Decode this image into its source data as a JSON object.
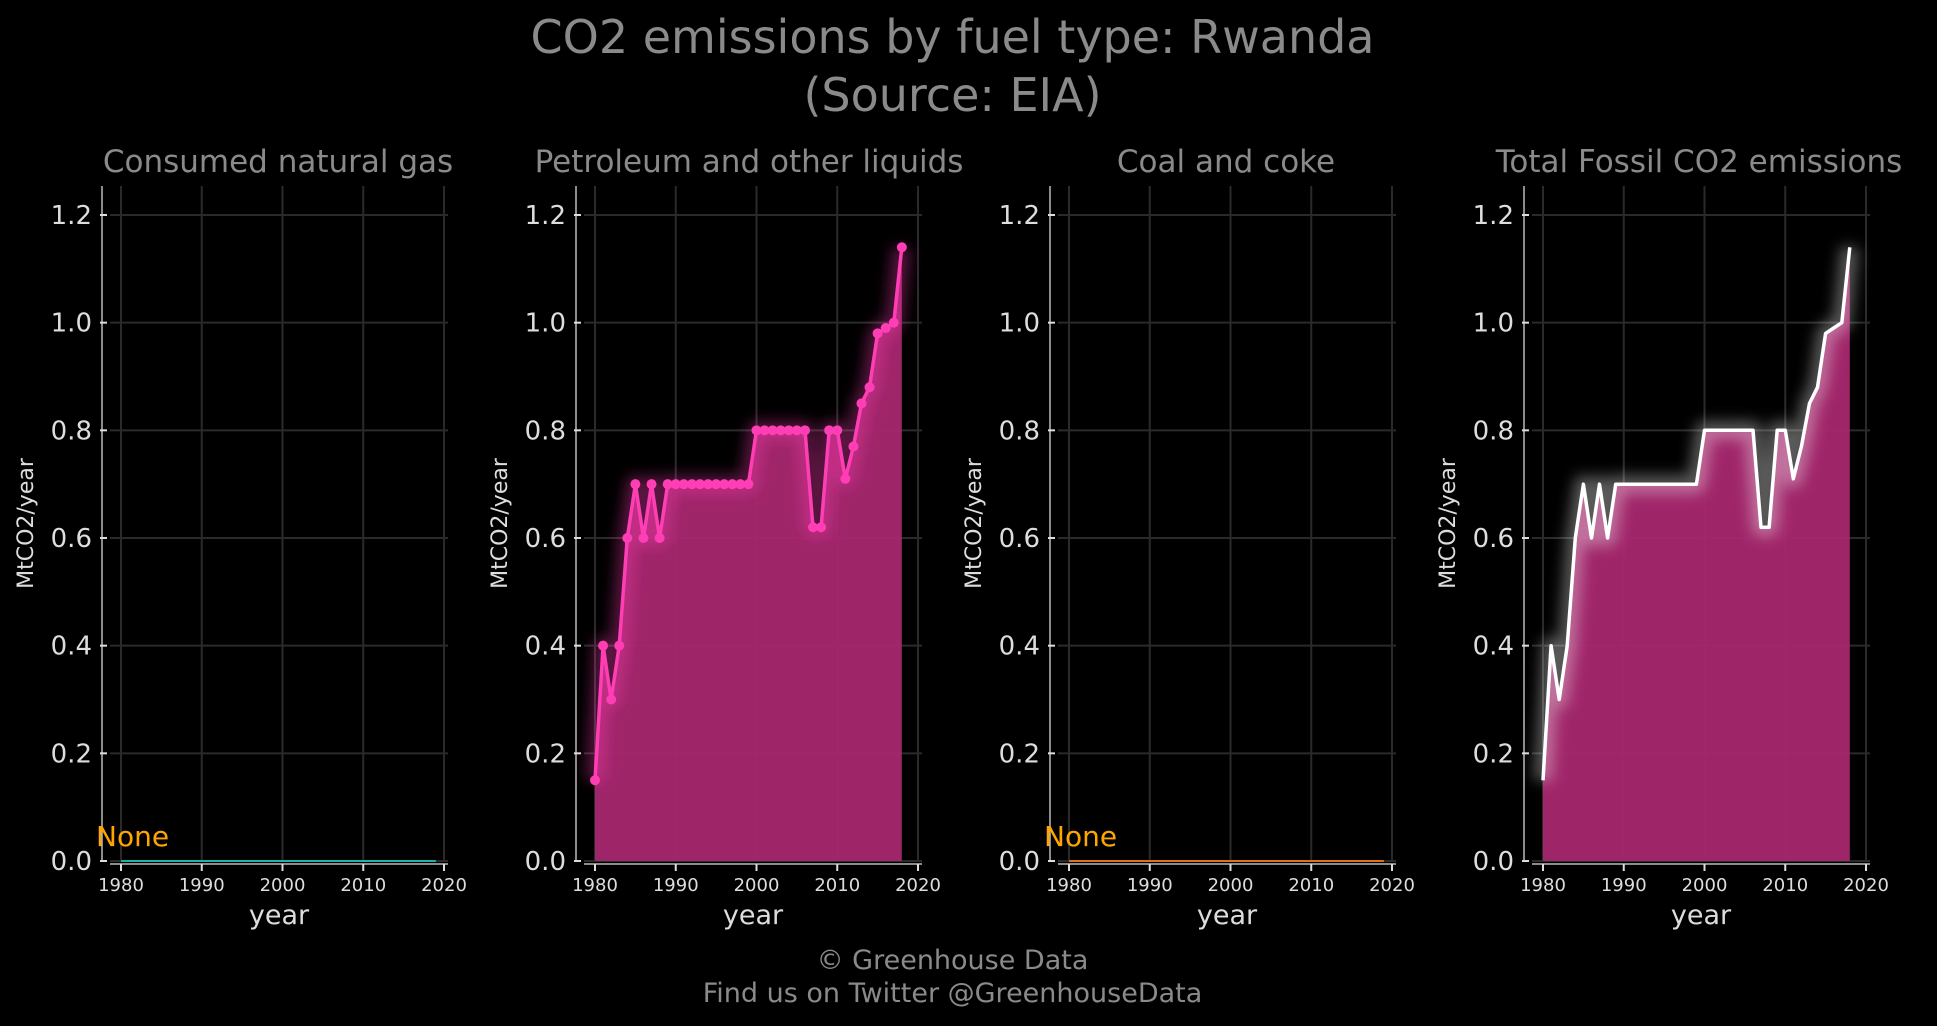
{
  "title_line1": "CO2 emissions by fuel type: Rwanda",
  "title_line2": "(Source: EIA)",
  "footer_line1": "© Greenhouse Data",
  "footer_line2": "Find us on Twitter @GreenhouseData",
  "chart_data": [
    {
      "type": "line",
      "title": "Consumed natural gas",
      "xlabel": "year",
      "ylabel": "MtCO2/year",
      "xlim": [
        1980,
        2020
      ],
      "ylim": [
        0,
        1.2
      ],
      "xticks": [
        1980,
        1990,
        2000,
        2010,
        2020
      ],
      "yticks": [
        "0.0",
        "0.2",
        "0.4",
        "0.6",
        "0.8",
        "1.0",
        "1.2"
      ],
      "grid": true,
      "color": "#20b2aa",
      "annotation": "None",
      "annotation_color": "#ffa500",
      "series": [
        {
          "x": [
            1980,
            2019
          ],
          "values": [
            0,
            0
          ]
        }
      ]
    },
    {
      "type": "area",
      "title": "Petroleum and other liquids",
      "xlabel": "year",
      "ylabel": "MtCO2/year",
      "xlim": [
        1980,
        2020
      ],
      "ylim": [
        0,
        1.2
      ],
      "xticks": [
        1980,
        1990,
        2000,
        2010,
        2020
      ],
      "yticks": [
        "0.0",
        "0.2",
        "0.4",
        "0.6",
        "0.8",
        "1.0",
        "1.2"
      ],
      "grid": true,
      "color": "#ff3eb5",
      "fill_color": "#a8276f",
      "markers": true,
      "series": [
        {
          "x": [
            1980,
            1981,
            1982,
            1983,
            1984,
            1985,
            1986,
            1987,
            1988,
            1989,
            1990,
            1991,
            1992,
            1993,
            1994,
            1995,
            1996,
            1997,
            1998,
            1999,
            2000,
            2001,
            2002,
            2003,
            2004,
            2005,
            2006,
            2007,
            2008,
            2009,
            2010,
            2011,
            2012,
            2013,
            2014,
            2015,
            2016,
            2017,
            2018
          ],
          "values": [
            0.15,
            0.4,
            0.3,
            0.4,
            0.6,
            0.7,
            0.6,
            0.7,
            0.6,
            0.7,
            0.7,
            0.7,
            0.7,
            0.7,
            0.7,
            0.7,
            0.7,
            0.7,
            0.7,
            0.7,
            0.8,
            0.8,
            0.8,
            0.8,
            0.8,
            0.8,
            0.8,
            0.62,
            0.62,
            0.8,
            0.8,
            0.71,
            0.77,
            0.85,
            0.88,
            0.98,
            0.99,
            1.0,
            1.14
          ]
        }
      ]
    },
    {
      "type": "line",
      "title": "Coal and coke",
      "xlabel": "year",
      "ylabel": "MtCO2/year",
      "xlim": [
        1980,
        2020
      ],
      "ylim": [
        0,
        1.2
      ],
      "xticks": [
        1980,
        1990,
        2000,
        2010,
        2020
      ],
      "yticks": [
        "0.0",
        "0.2",
        "0.4",
        "0.6",
        "0.8",
        "1.0",
        "1.2"
      ],
      "grid": true,
      "color": "#e0701a",
      "annotation": "None",
      "annotation_color": "#ffa500",
      "series": [
        {
          "x": [
            1980,
            2019
          ],
          "values": [
            0,
            0
          ]
        }
      ]
    },
    {
      "type": "area",
      "title": "Total Fossil CO2 emissions",
      "xlabel": "year",
      "ylabel": "MtCO2/year",
      "xlim": [
        1980,
        2020
      ],
      "ylim": [
        0,
        1.2
      ],
      "xticks": [
        1980,
        1990,
        2000,
        2010,
        2020
      ],
      "yticks": [
        "0.0",
        "0.2",
        "0.4",
        "0.6",
        "0.8",
        "1.0",
        "1.2"
      ],
      "grid": true,
      "color": "#ffffff",
      "fill_color": "#a8276f",
      "markers": false,
      "series": [
        {
          "x": [
            1980,
            1981,
            1982,
            1983,
            1984,
            1985,
            1986,
            1987,
            1988,
            1989,
            1990,
            1991,
            1992,
            1993,
            1994,
            1995,
            1996,
            1997,
            1998,
            1999,
            2000,
            2001,
            2002,
            2003,
            2004,
            2005,
            2006,
            2007,
            2008,
            2009,
            2010,
            2011,
            2012,
            2013,
            2014,
            2015,
            2016,
            2017,
            2018
          ],
          "values": [
            0.15,
            0.4,
            0.3,
            0.4,
            0.6,
            0.7,
            0.6,
            0.7,
            0.6,
            0.7,
            0.7,
            0.7,
            0.7,
            0.7,
            0.7,
            0.7,
            0.7,
            0.7,
            0.7,
            0.7,
            0.8,
            0.8,
            0.8,
            0.8,
            0.8,
            0.8,
            0.8,
            0.62,
            0.62,
            0.8,
            0.8,
            0.71,
            0.77,
            0.85,
            0.88,
            0.98,
            0.99,
            1.0,
            1.14
          ]
        }
      ]
    }
  ]
}
